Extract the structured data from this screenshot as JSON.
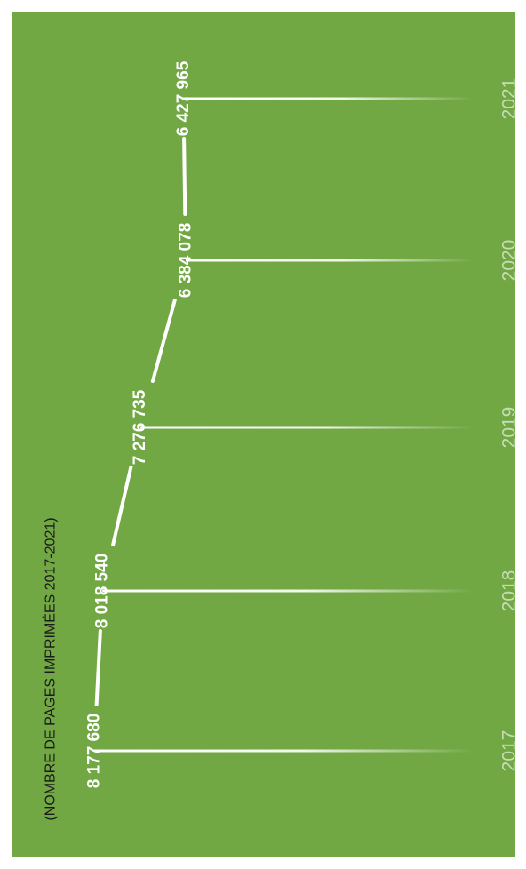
{
  "colors": {
    "background": "#71a844",
    "line": "#ffffff",
    "title": "#1a1a1a"
  },
  "chart_data": {
    "type": "line",
    "title": "(NOMBRE DE PAGES IMPRIMÉES 2017-2021)",
    "xlabel": "",
    "ylabel": "",
    "categories": [
      "2017",
      "2018",
      "2019",
      "2020",
      "2021"
    ],
    "values": [
      8177680,
      8018540,
      7276735,
      6384078,
      6427965
    ],
    "value_labels": [
      "8 177 680",
      "8 018 540",
      "7 276 735",
      "6 384 078",
      "6 427 965"
    ],
    "orientation": "rotated-90-ccw",
    "grid": false,
    "legend": "none"
  }
}
